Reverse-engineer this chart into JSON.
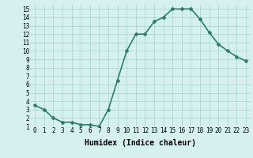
{
  "x": [
    0,
    1,
    2,
    3,
    4,
    5,
    6,
    7,
    8,
    9,
    10,
    11,
    12,
    13,
    14,
    15,
    16,
    17,
    18,
    19,
    20,
    21,
    22,
    23
  ],
  "y": [
    3.5,
    3.0,
    2.0,
    1.5,
    1.5,
    1.2,
    1.2,
    1.0,
    3.0,
    6.5,
    10.0,
    12.0,
    12.0,
    13.5,
    14.0,
    15.0,
    15.0,
    15.0,
    13.8,
    12.2,
    10.8,
    10.0,
    9.3,
    8.8
  ],
  "line_color": "#2e7d6e",
  "marker": "D",
  "marker_size": 2,
  "bg_color": "#d5f0ef",
  "grid_color": "#aad8d5",
  "xlabel": "Humidex (Indice chaleur)",
  "xlim": [
    -0.5,
    23.5
  ],
  "ylim": [
    1,
    15.5
  ],
  "yticks": [
    1,
    2,
    3,
    4,
    5,
    6,
    7,
    8,
    9,
    10,
    11,
    12,
    13,
    14,
    15
  ],
  "xticks": [
    0,
    1,
    2,
    3,
    4,
    5,
    6,
    7,
    8,
    9,
    10,
    11,
    12,
    13,
    14,
    15,
    16,
    17,
    18,
    19,
    20,
    21,
    22,
    23
  ],
  "xlabel_fontsize": 7,
  "tick_fontsize": 5.5,
  "linewidth": 1.2
}
